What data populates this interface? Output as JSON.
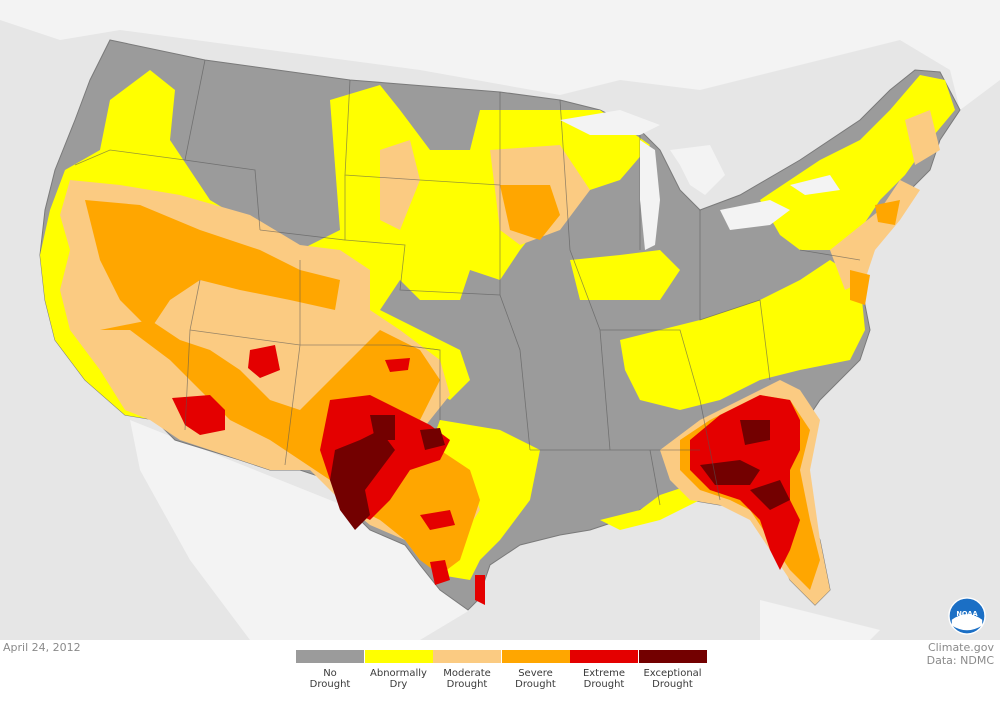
{
  "date": "April 24, 2012",
  "credits": {
    "line1": "Climate.gov",
    "line2": "Data: NDMC"
  },
  "logo_text": "NOAA",
  "colors": {
    "background": "#e6e6e6",
    "land": "#f3f3f3",
    "no_drought": "#9b9b9b",
    "abnormally_dry": "#ffff00",
    "moderate": "#fbcb82",
    "severe": "#ffa600",
    "extreme": "#e40000",
    "exceptional": "#730000"
  },
  "legend": [
    {
      "label": "No\nDrought",
      "color": "#9b9b9b"
    },
    {
      "label": "Abnormally\nDry",
      "color": "#ffff00"
    },
    {
      "label": "Moderate\nDrought",
      "color": "#fbcb82"
    },
    {
      "label": "Severe\nDrought",
      "color": "#ffa600"
    },
    {
      "label": "Extreme\nDrought",
      "color": "#e40000"
    },
    {
      "label": "Exceptional\nDrought",
      "color": "#730000"
    }
  ]
}
